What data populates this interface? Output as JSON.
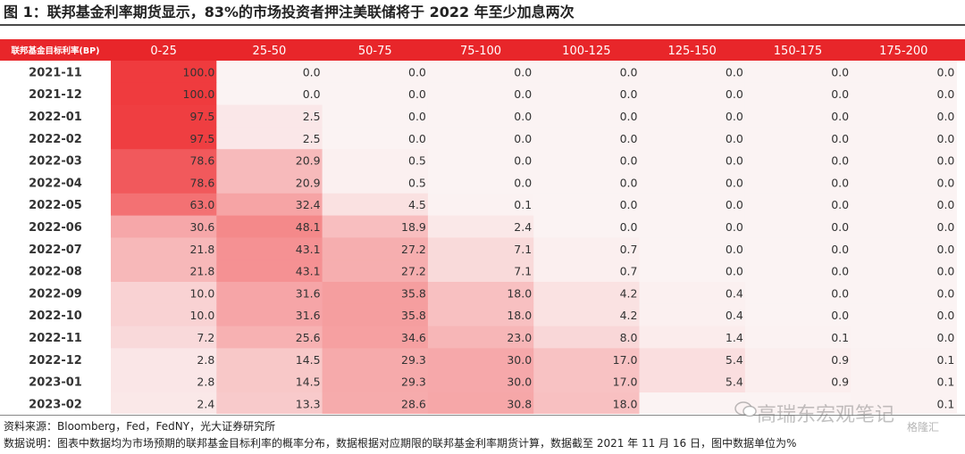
{
  "figure": {
    "title": "图 1：联邦基金利率期货显示，83%的市场投资者押注美联储将于 2022 年至少加息两次",
    "source": "资料来源：Bloomberg，Fed，FedNY，光大证券研究所",
    "caption": "数据说明：图表中数据均为市场预期的联邦基金目标利率的概率分布，数据根据对应期限的联邦基金利率期货计算，数据截至 2021 年 11 月 16 日，图中数据单位为%",
    "watermark": "高瑞东宏观笔记",
    "watermark2": "格隆汇"
  },
  "colors": {
    "header_bg": "#e8262a",
    "header_text": "#ffffff",
    "heat_max": "#ef3b3e",
    "heat_min": "#fbf3f3"
  },
  "icons": {
    "watermark": "wechat-icon"
  },
  "chart_data": {
    "type": "heatmap",
    "corner_label": "联邦基金目标利率(BP)",
    "columns": [
      "0-25",
      "25-50",
      "50-75",
      "75-100",
      "100-125",
      "125-150",
      "150-175",
      "175-200"
    ],
    "rows": [
      "2021-11",
      "2021-12",
      "2022-01",
      "2022-02",
      "2022-03",
      "2022-04",
      "2022-05",
      "2022-06",
      "2022-07",
      "2022-08",
      "2022-09",
      "2022-10",
      "2022-11",
      "2022-12",
      "2023-01",
      "2023-02"
    ],
    "values": [
      [
        "100.0",
        "0.0",
        "0.0",
        "0.0",
        "0.0",
        "0.0",
        "0.0",
        "0.0"
      ],
      [
        "100.0",
        "0.0",
        "0.0",
        "0.0",
        "0.0",
        "0.0",
        "0.0",
        "0.0"
      ],
      [
        "97.5",
        "2.5",
        "0.0",
        "0.0",
        "0.0",
        "0.0",
        "0.0",
        "0.0"
      ],
      [
        "97.5",
        "2.5",
        "0.0",
        "0.0",
        "0.0",
        "0.0",
        "0.0",
        "0.0"
      ],
      [
        "78.6",
        "20.9",
        "0.5",
        "0.0",
        "0.0",
        "0.0",
        "0.0",
        "0.0"
      ],
      [
        "78.6",
        "20.9",
        "0.5",
        "0.0",
        "0.0",
        "0.0",
        "0.0",
        "0.0"
      ],
      [
        "63.0",
        "32.4",
        "4.5",
        "0.1",
        "0.0",
        "0.0",
        "0.0",
        "0.0"
      ],
      [
        "30.6",
        "48.1",
        "18.9",
        "2.4",
        "0.0",
        "0.0",
        "0.0",
        "0.0"
      ],
      [
        "21.8",
        "43.1",
        "27.2",
        "7.1",
        "0.7",
        "0.0",
        "0.0",
        "0.0"
      ],
      [
        "21.8",
        "43.1",
        "27.2",
        "7.1",
        "0.7",
        "0.0",
        "0.0",
        "0.0"
      ],
      [
        "10.0",
        "31.6",
        "35.8",
        "18.0",
        "4.2",
        "0.4",
        "0.0",
        "0.0"
      ],
      [
        "10.0",
        "31.6",
        "35.8",
        "18.0",
        "4.2",
        "0.4",
        "0.0",
        "0.0"
      ],
      [
        "7.2",
        "25.6",
        "34.6",
        "23.0",
        "8.0",
        "1.4",
        "0.1",
        "0.0"
      ],
      [
        "2.8",
        "14.5",
        "29.3",
        "30.0",
        "17.0",
        "5.4",
        "0.9",
        "0.1"
      ],
      [
        "2.8",
        "14.5",
        "29.3",
        "30.0",
        "17.0",
        "5.4",
        "0.9",
        "0.1"
      ],
      [
        "2.4",
        "13.3",
        "28.6",
        "30.8",
        "18.0",
        "",
        "",
        "0.1"
      ]
    ]
  }
}
